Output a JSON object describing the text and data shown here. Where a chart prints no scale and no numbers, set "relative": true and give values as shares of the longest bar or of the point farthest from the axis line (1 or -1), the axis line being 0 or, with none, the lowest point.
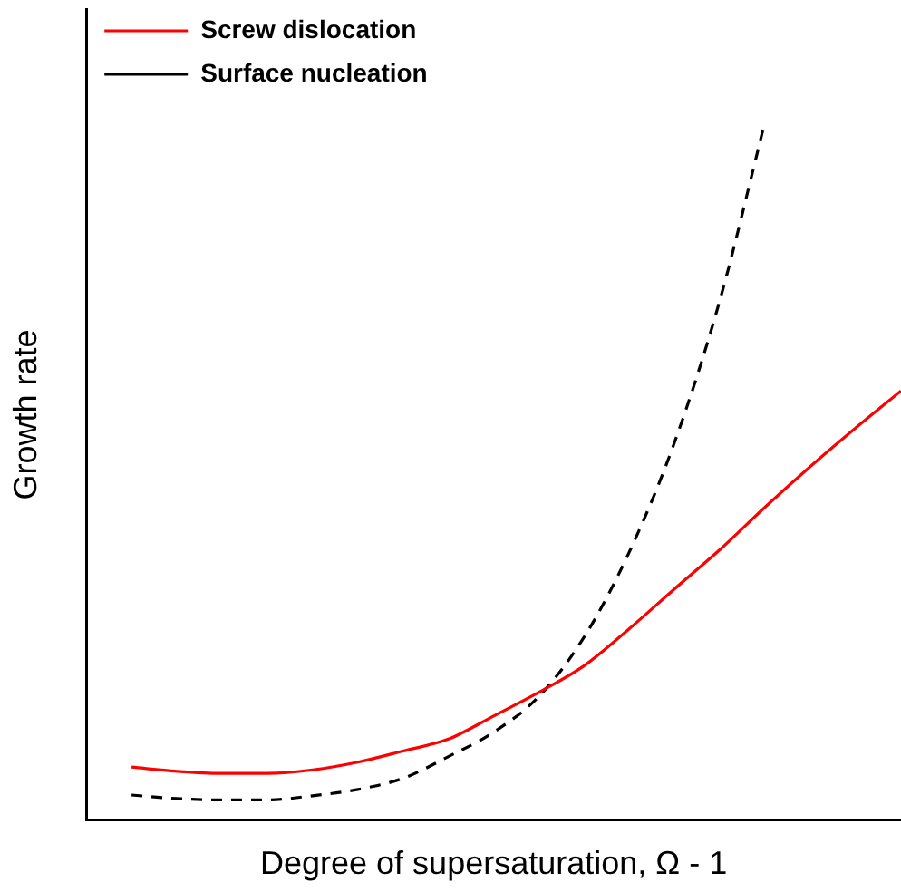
{
  "chart_data": {
    "type": "line",
    "relative": true,
    "xlabel": "Degree of supersaturation, Ω - 1",
    "ylabel": "Growth rate",
    "legend": "top left",
    "grid": false,
    "marker": "none",
    "categories": [
      null,
      null,
      null,
      null,
      null,
      null,
      null,
      null,
      null,
      null,
      null,
      null,
      null,
      null,
      null,
      null,
      null,
      null,
      null
    ],
    "series": [
      {
        "name": "Screw dislocation",
        "color": "#ff0000",
        "line_style": "solid",
        "values": [
          null,
          0.076,
          0.07,
          0.067,
          0.067,
          0.072,
          0.083,
          0.099,
          0.116,
          0.149,
          0.183,
          0.221,
          0.274,
          0.331,
          0.387,
          0.448,
          0.506,
          0.561,
          0.614
        ]
      },
      {
        "name": "Surface nucleation",
        "color": "#000000",
        "line_style": "dashed",
        "values": [
          null,
          0.036,
          0.031,
          0.029,
          0.029,
          0.035,
          0.044,
          0.06,
          0.091,
          0.126,
          0.177,
          0.262,
          0.384,
          0.541,
          0.744,
          1,
          null,
          null,
          null
        ]
      }
    ]
  }
}
